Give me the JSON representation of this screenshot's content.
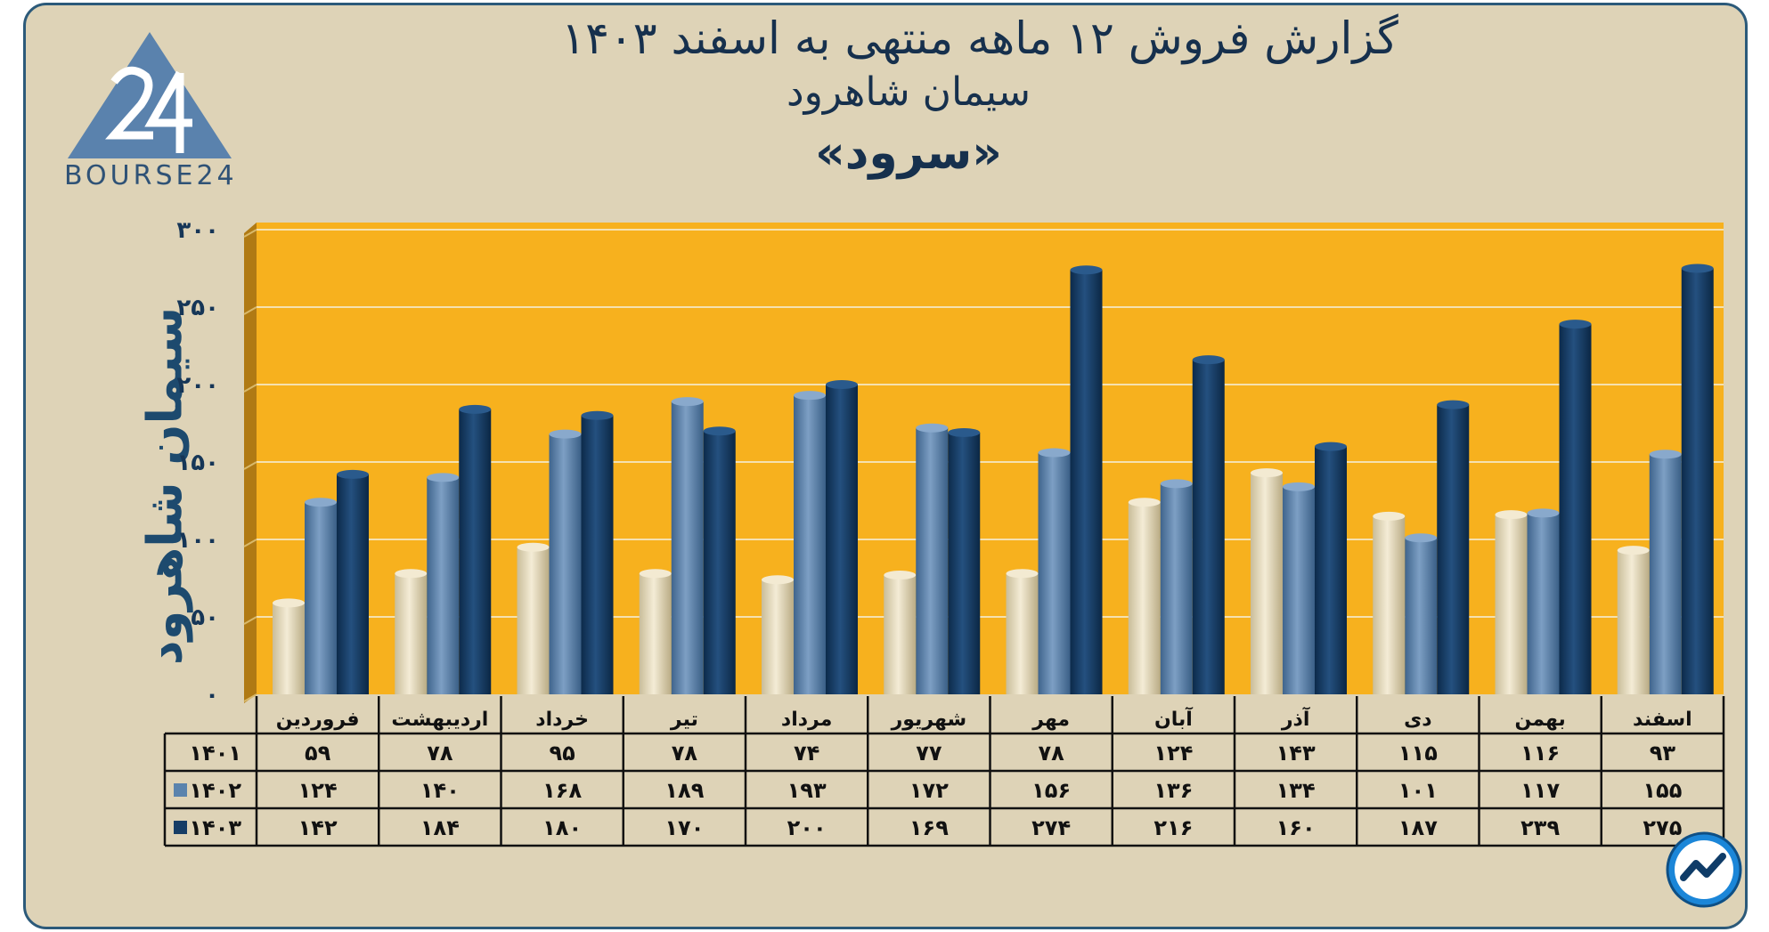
{
  "title": {
    "line1": "گزارش  فروش ۱۲ ماهه منتهی به اسفند ۱۴۰۳",
    "line2": "سیمان شاهرود",
    "line3": "«سرود»"
  },
  "logo": {
    "text": "BOURSE24",
    "mark": "24"
  },
  "colors": {
    "plot_bg": "#f7b11e",
    "series": [
      "#e9dfc2",
      "#5a83ad",
      "#163d66"
    ]
  },
  "chart_data": {
    "type": "bar",
    "title": "گزارش  فروش ۱۲ ماهه منتهی به اسفند ۱۴۰۳",
    "ylabel": "سیمان شاهرود",
    "ylim": [
      0,
      300
    ],
    "yticks": [
      0,
      50,
      100,
      150,
      200,
      250,
      300
    ],
    "ytick_labels": [
      "۰",
      "۵۰",
      "۱۰۰",
      "۱۵۰",
      "۲۰۰",
      "۲۵۰",
      "۳۰۰"
    ],
    "grid": true,
    "legend": "table-left",
    "categories": [
      "فروردین",
      "اردیبهشت",
      "خرداد",
      "تیر",
      "مرداد",
      "شهریور",
      "مهر",
      "آبان",
      "آذر",
      "دی",
      "بهمن",
      "اسفند"
    ],
    "series": [
      {
        "name": "۱۴۰۱",
        "values": [
          59,
          78,
          95,
          78,
          74,
          77,
          78,
          124,
          143,
          115,
          116,
          93
        ],
        "labels": [
          "۵۹",
          "۷۸",
          "۹۵",
          "۷۸",
          "۷۴",
          "۷۷",
          "۷۸",
          "۱۲۴",
          "۱۴۳",
          "۱۱۵",
          "۱۱۶",
          "۹۳"
        ]
      },
      {
        "name": "۱۴۰۲",
        "values": [
          124,
          140,
          168,
          189,
          193,
          172,
          156,
          136,
          134,
          101,
          117,
          155
        ],
        "labels": [
          "۱۲۴",
          "۱۴۰",
          "۱۶۸",
          "۱۸۹",
          "۱۹۳",
          "۱۷۲",
          "۱۵۶",
          "۱۳۶",
          "۱۳۴",
          "۱۰۱",
          "۱۱۷",
          "۱۵۵"
        ]
      },
      {
        "name": "۱۴۰۳",
        "values": [
          142,
          184,
          180,
          170,
          200,
          169,
          274,
          216,
          160,
          187,
          239,
          275
        ],
        "labels": [
          "۱۴۲",
          "۱۸۴",
          "۱۸۰",
          "۱۷۰",
          "۲۰۰",
          "۱۶۹",
          "۲۷۴",
          "۲۱۶",
          "۱۶۰",
          "۱۸۷",
          "۲۳۹",
          "۲۷۵"
        ]
      }
    ]
  }
}
